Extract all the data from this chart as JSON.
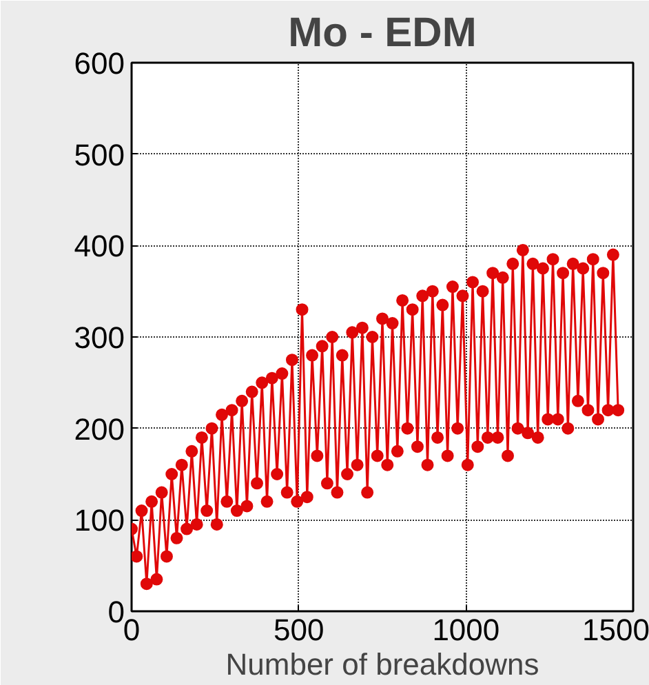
{
  "chart_data": {
    "type": "line",
    "title": "Mo - EDM",
    "xlabel": "Number of breakdowns",
    "xlim": [
      0,
      1500
    ],
    "xticks": [
      0,
      500,
      1000,
      1500
    ],
    "ylim": [
      0,
      600
    ],
    "yticks": [
      0,
      100,
      200,
      300,
      400,
      500,
      600
    ],
    "grid": true,
    "marker": "circle",
    "line_style": "solid",
    "series": [
      {
        "color": "#e00808",
        "x": [
          0,
          15,
          30,
          45,
          60,
          75,
          90,
          105,
          120,
          135,
          150,
          165,
          180,
          195,
          210,
          225,
          240,
          255,
          270,
          285,
          300,
          315,
          330,
          345,
          360,
          375,
          390,
          405,
          420,
          435,
          450,
          465,
          480,
          495,
          510,
          525,
          540,
          555,
          570,
          585,
          600,
          615,
          630,
          645,
          660,
          675,
          690,
          705,
          720,
          735,
          750,
          765,
          780,
          795,
          810,
          825,
          840,
          855,
          870,
          885,
          900,
          915,
          930,
          945,
          960,
          975,
          990,
          1005,
          1020,
          1035,
          1050,
          1065,
          1080,
          1095,
          1110,
          1125,
          1140,
          1155,
          1170,
          1185,
          1200,
          1215,
          1230,
          1245,
          1260,
          1275,
          1290,
          1305,
          1320,
          1335,
          1350,
          1365,
          1380,
          1395,
          1410,
          1425,
          1440,
          1455
        ],
        "values": [
          90,
          60,
          110,
          30,
          120,
          35,
          130,
          60,
          150,
          80,
          160,
          90,
          175,
          95,
          190,
          110,
          200,
          95,
          215,
          120,
          220,
          110,
          230,
          115,
          240,
          140,
          250,
          120,
          255,
          150,
          260,
          130,
          275,
          120,
          330,
          125,
          280,
          170,
          290,
          140,
          300,
          130,
          280,
          150,
          305,
          160,
          310,
          130,
          300,
          170,
          320,
          160,
          315,
          175,
          340,
          200,
          330,
          180,
          345,
          160,
          350,
          190,
          335,
          170,
          355,
          200,
          345,
          160,
          360,
          180,
          350,
          190,
          370,
          190,
          365,
          170,
          380,
          200,
          395,
          195,
          380,
          190,
          375,
          210,
          385,
          210,
          370,
          200,
          380,
          230,
          375,
          220,
          385,
          210,
          370,
          220,
          390,
          220
        ]
      }
    ]
  }
}
